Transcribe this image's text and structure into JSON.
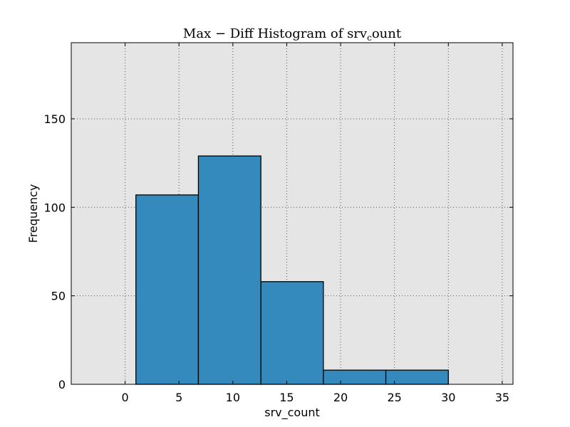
{
  "chart_data": {
    "type": "bar",
    "title": {
      "main": "Max − Diff Histogram of srv",
      "subscript": "c",
      "suffix": "ount"
    },
    "xlabel": "srv_count",
    "ylabel": "Frequency",
    "xlim": [
      -5,
      36
    ],
    "ylim": [
      0,
      193
    ],
    "xticks": [
      0,
      5,
      10,
      15,
      20,
      25,
      30,
      35
    ],
    "yticks": [
      0,
      50,
      100,
      150
    ],
    "grid": true,
    "bins": [
      {
        "x0": 1.0,
        "x1": 6.8,
        "value": 107
      },
      {
        "x0": 6.8,
        "x1": 12.6,
        "value": 129
      },
      {
        "x0": 12.6,
        "x1": 18.4,
        "value": 58
      },
      {
        "x0": 18.4,
        "x1": 24.2,
        "value": 8
      },
      {
        "x0": 24.2,
        "x1": 30.0,
        "value": 8
      }
    ],
    "colors": {
      "bar_fill": "#348abd",
      "bar_edge": "#000000",
      "plot_bg": "#e5e5e5",
      "grid": "#555555"
    }
  }
}
